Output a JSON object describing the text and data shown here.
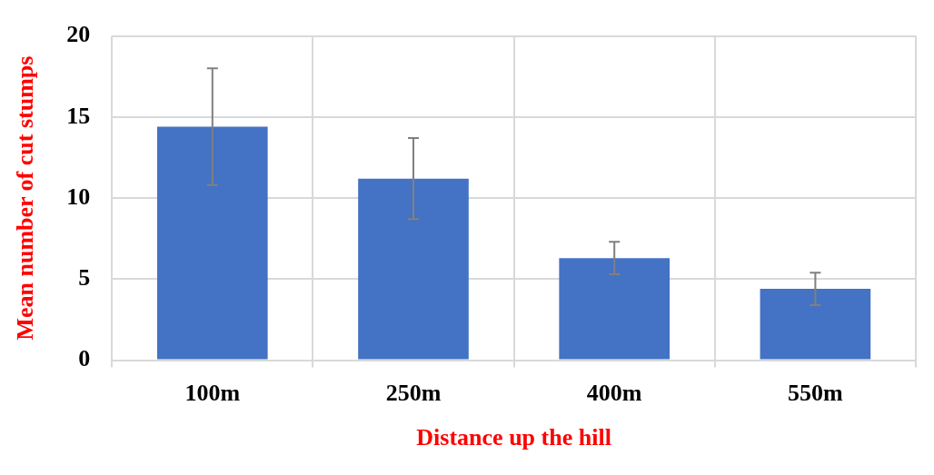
{
  "chart_data": {
    "type": "bar",
    "xlabel": "Distance up the hill",
    "ylabel": "Mean number of cut stumps",
    "categories": [
      "100m",
      "250m",
      "400m",
      "550m"
    ],
    "values": [
      14.4,
      11.2,
      6.3,
      4.4
    ],
    "errors": [
      3.6,
      2.5,
      1,
      1
    ],
    "color": "#4472c4",
    "ylim": [
      0,
      20
    ],
    "yticks": [
      0,
      5,
      10,
      15,
      20
    ],
    "grid": true
  }
}
